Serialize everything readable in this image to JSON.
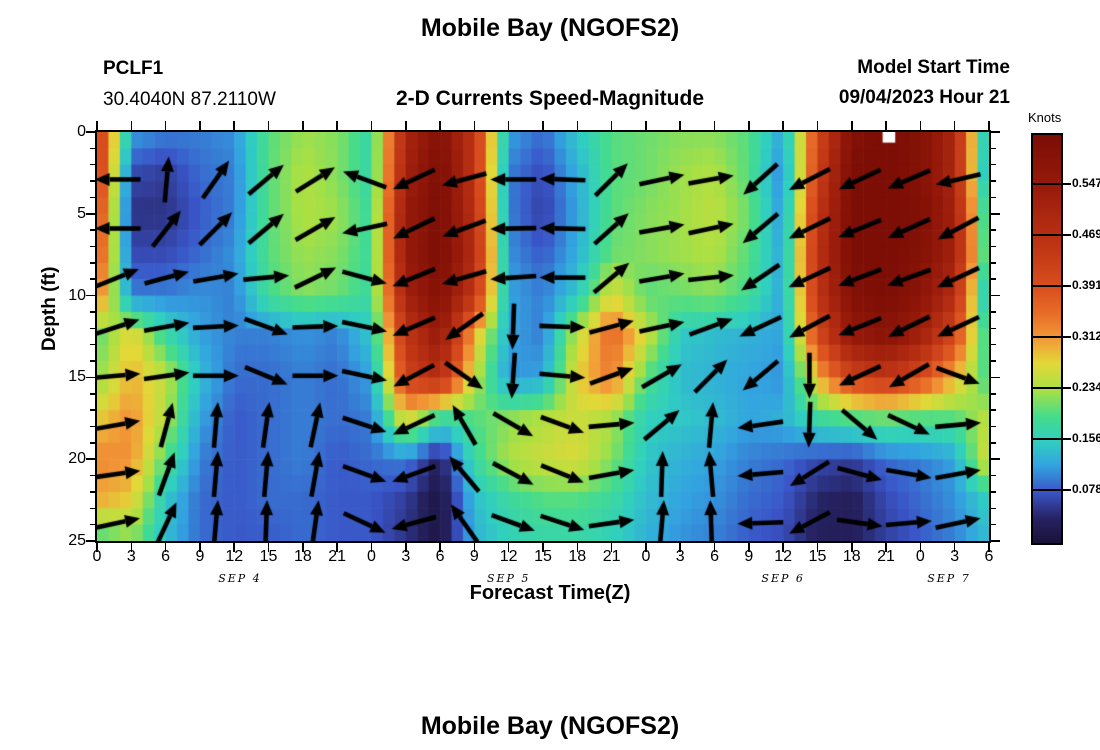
{
  "header": {
    "title": "Mobile Bay (NGOFS2)",
    "station": "PCLF1",
    "coordinates": "30.4040N  87.2110W",
    "subtitle": "2-D Currents Speed-Magnitude",
    "model_start_label": "Model Start Time",
    "model_start_value": "09/04/2023 Hour 21"
  },
  "axes": {
    "x_label": "Forecast Time(Z)",
    "y_label": "Depth (ft)"
  },
  "footer": {
    "title": "Mobile Bay (NGOFS2)"
  },
  "chart_data": {
    "type": "heatmap",
    "title": "Mobile Bay (NGOFS2)",
    "subtitle": "2-D Currents Speed-Magnitude",
    "station": "PCLF1",
    "location": "30.4040N 87.2110W",
    "model_start": "09/04/2023 Hour 21",
    "xlabel": "Forecast Time(Z)",
    "ylabel": "Depth (ft)",
    "x_range_hours": [
      0,
      78
    ],
    "y_range_ft": [
      0,
      25
    ],
    "x_tick_step_hours": 3,
    "x_tick_labels": [
      "0",
      "3",
      "6",
      "9",
      "12",
      "15",
      "18",
      "21",
      "0",
      "3",
      "6",
      "9",
      "12",
      "15",
      "18",
      "21",
      "0",
      "3",
      "6",
      "9",
      "12",
      "15",
      "18",
      "21",
      "0",
      "3",
      "6"
    ],
    "y_tick_labels": [
      "0",
      "5",
      "10",
      "15",
      "20",
      "25"
    ],
    "y_minor_tick_step": 1,
    "day_labels": [
      {
        "label": "SEP 4",
        "hour": 12.5
      },
      {
        "label": "SEP 5",
        "hour": 36
      },
      {
        "label": "SEP 6",
        "hour": 60
      },
      {
        "label": "SEP 7",
        "hour": 74.5
      }
    ],
    "colorbar": {
      "label": "Knots",
      "min": 0,
      "max": 0.625,
      "tick_labels": [
        "0.547",
        "0.469",
        "0.391",
        "0.312",
        "0.234",
        "0.156",
        "0.078"
      ],
      "colormap": [
        {
          "f": 0.0,
          "c": "#191238"
        },
        {
          "f": 0.06,
          "c": "#262262"
        },
        {
          "f": 0.125,
          "c": "#3a55c8"
        },
        {
          "f": 0.19,
          "c": "#33a3e0"
        },
        {
          "f": 0.25,
          "c": "#30cfc0"
        },
        {
          "f": 0.31,
          "c": "#45dc8c"
        },
        {
          "f": 0.375,
          "c": "#a8e044"
        },
        {
          "f": 0.44,
          "c": "#e2d838"
        },
        {
          "f": 0.5,
          "c": "#f29a38"
        },
        {
          "f": 0.56,
          "c": "#e86e28"
        },
        {
          "f": 0.625,
          "c": "#d94e1e"
        },
        {
          "f": 0.75,
          "c": "#b93013"
        },
        {
          "f": 0.875,
          "c": "#971a0a"
        },
        {
          "f": 1.0,
          "c": "#7a0d05"
        }
      ]
    },
    "grid_hours": [
      0,
      3,
      6,
      9,
      12,
      15,
      18,
      21,
      24,
      27,
      30,
      33,
      36,
      39,
      42,
      45,
      48,
      51,
      54,
      57,
      60,
      63,
      66,
      69,
      72,
      75,
      78
    ],
    "grid_depths": [
      0,
      2.5,
      5,
      7.5,
      10,
      12.5,
      15,
      17.5,
      20,
      22.5,
      25
    ],
    "speeds_knots": [
      [
        0.45,
        0.12,
        0.1,
        0.1,
        0.11,
        0.2,
        0.23,
        0.22,
        0.17,
        0.5,
        0.6,
        0.45,
        0.12,
        0.09,
        0.15,
        0.2,
        0.21,
        0.22,
        0.22,
        0.2,
        0.12,
        0.4,
        0.6,
        0.62,
        0.6,
        0.5,
        0.1
      ],
      [
        0.45,
        0.07,
        0.06,
        0.09,
        0.1,
        0.2,
        0.24,
        0.22,
        0.17,
        0.52,
        0.62,
        0.45,
        0.1,
        0.07,
        0.13,
        0.2,
        0.21,
        0.23,
        0.24,
        0.2,
        0.1,
        0.42,
        0.62,
        0.62,
        0.6,
        0.5,
        0.09
      ],
      [
        0.42,
        0.05,
        0.05,
        0.08,
        0.1,
        0.2,
        0.24,
        0.23,
        0.18,
        0.55,
        0.62,
        0.47,
        0.1,
        0.06,
        0.12,
        0.2,
        0.22,
        0.23,
        0.25,
        0.21,
        0.11,
        0.45,
        0.62,
        0.62,
        0.61,
        0.52,
        0.13
      ],
      [
        0.4,
        0.07,
        0.07,
        0.09,
        0.11,
        0.2,
        0.23,
        0.22,
        0.18,
        0.55,
        0.62,
        0.48,
        0.11,
        0.08,
        0.13,
        0.21,
        0.22,
        0.23,
        0.24,
        0.2,
        0.12,
        0.46,
        0.62,
        0.62,
        0.6,
        0.52,
        0.14
      ],
      [
        0.35,
        0.1,
        0.1,
        0.11,
        0.1,
        0.19,
        0.22,
        0.21,
        0.18,
        0.52,
        0.6,
        0.45,
        0.12,
        0.1,
        0.15,
        0.27,
        0.2,
        0.21,
        0.22,
        0.19,
        0.12,
        0.45,
        0.6,
        0.62,
        0.58,
        0.48,
        0.1
      ],
      [
        0.2,
        0.28,
        0.18,
        0.12,
        0.1,
        0.1,
        0.11,
        0.1,
        0.15,
        0.45,
        0.55,
        0.3,
        0.12,
        0.1,
        0.25,
        0.36,
        0.26,
        0.15,
        0.14,
        0.13,
        0.12,
        0.4,
        0.55,
        0.58,
        0.52,
        0.4,
        0.16
      ],
      [
        0.22,
        0.3,
        0.25,
        0.14,
        0.09,
        0.09,
        0.1,
        0.09,
        0.12,
        0.42,
        0.48,
        0.25,
        0.11,
        0.12,
        0.28,
        0.34,
        0.2,
        0.14,
        0.13,
        0.12,
        0.11,
        0.3,
        0.42,
        0.45,
        0.4,
        0.3,
        0.18
      ],
      [
        0.28,
        0.32,
        0.24,
        0.12,
        0.08,
        0.09,
        0.1,
        0.09,
        0.1,
        0.28,
        0.18,
        0.2,
        0.22,
        0.24,
        0.26,
        0.24,
        0.16,
        0.15,
        0.14,
        0.12,
        0.13,
        0.18,
        0.2,
        0.21,
        0.2,
        0.2,
        0.25
      ],
      [
        0.33,
        0.32,
        0.2,
        0.1,
        0.08,
        0.09,
        0.1,
        0.08,
        0.09,
        0.1,
        0.03,
        0.18,
        0.24,
        0.26,
        0.27,
        0.22,
        0.15,
        0.13,
        0.12,
        0.1,
        0.09,
        0.07,
        0.06,
        0.09,
        0.1,
        0.12,
        0.28
      ],
      [
        0.3,
        0.28,
        0.15,
        0.09,
        0.08,
        0.09,
        0.09,
        0.08,
        0.08,
        0.06,
        0.01,
        0.14,
        0.18,
        0.2,
        0.2,
        0.18,
        0.14,
        0.12,
        0.11,
        0.09,
        0.08,
        0.04,
        0.03,
        0.07,
        0.09,
        0.11,
        0.16
      ],
      [
        0.18,
        0.22,
        0.14,
        0.09,
        0.08,
        0.08,
        0.09,
        0.08,
        0.08,
        0.05,
        0.01,
        0.13,
        0.16,
        0.17,
        0.17,
        0.16,
        0.13,
        0.11,
        0.1,
        0.08,
        0.07,
        0.03,
        0.03,
        0.06,
        0.08,
        0.1,
        0.14
      ]
    ],
    "arrows": {
      "hours": [
        1.8,
        6.1,
        10.4,
        14.8,
        19.1,
        23.4,
        27.7,
        32.1,
        36.4,
        40.7,
        45.0,
        49.4,
        53.7,
        58.0,
        62.3,
        66.7,
        71.0,
        75.3
      ],
      "depths": [
        2.9,
        5.9,
        8.9,
        11.9,
        14.9,
        17.9,
        20.9,
        23.9
      ],
      "angles_deg": [
        [
          180,
          85,
          55,
          40,
          32,
          160,
          205,
          195,
          180,
          178,
          45,
          12,
          10,
          222,
          207,
          205,
          203,
          193
        ],
        [
          180,
          52,
          45,
          40,
          30,
          192,
          206,
          200,
          181,
          179,
          42,
          10,
          12,
          220,
          206,
          202,
          204,
          208
        ],
        [
          22,
          15,
          10,
          5,
          26,
          -15,
          202,
          196,
          184,
          180,
          40,
          10,
          6,
          214,
          205,
          201,
          200,
          205
        ],
        [
          18,
          10,
          3,
          -20,
          2,
          -12,
          203,
          215,
          268,
          -2,
          15,
          12,
          20,
          205,
          208,
          202,
          206,
          205
        ],
        [
          5,
          8,
          0,
          -22,
          0,
          -12,
          208,
          -35,
          266,
          -5,
          20,
          30,
          45,
          220,
          270,
          205,
          210,
          -20
        ],
        [
          10,
          75,
          85,
          82,
          78,
          -18,
          205,
          120,
          -30,
          -20,
          5,
          40,
          85,
          188,
          268,
          -40,
          -25,
          5
        ],
        [
          8,
          70,
          85,
          85,
          80,
          -20,
          200,
          130,
          -28,
          -22,
          10,
          88,
          95,
          185,
          212,
          -15,
          -10,
          10
        ],
        [
          12,
          65,
          85,
          88,
          82,
          -25,
          195,
          125,
          -20,
          -18,
          8,
          85,
          92,
          182,
          208,
          -8,
          5,
          12
        ]
      ]
    },
    "missing_data_gap": {
      "hour_start": 68.7,
      "hour_end": 69.8,
      "depth_start": 0,
      "depth_end": 0.65
    }
  }
}
